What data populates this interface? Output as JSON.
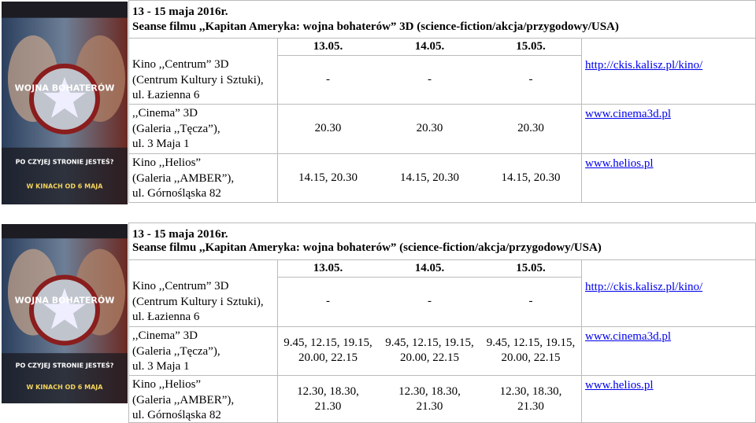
{
  "poster": {
    "title": "WOJNA BOHATERÓW",
    "tagline": "PO CZYJEJ STRONIE JESTEŚ?",
    "release": "W KINACH OD 6 MAJA"
  },
  "blocks": [
    {
      "date_range": "13 - 15 maja 2016r.",
      "title": "Seanse filmu ,,Kapitan Ameryka: wojna bohaterów” 3D (science-fiction/akcja/przygodowy/USA)",
      "dates": [
        "13.05.",
        "14.05.",
        "15.05."
      ],
      "rows": [
        {
          "cinema": [
            "Kino ,,Centrum” 3D",
            "(Centrum Kultury i Sztuki),",
            "ul. Łazienna 6"
          ],
          "times": [
            [
              "-"
            ],
            [
              "-"
            ],
            [
              "-"
            ]
          ],
          "link": "http://ckis.kalisz.pl/kino/"
        },
        {
          "cinema": [
            ",,Cinema” 3D",
            "(Galeria ,,Tęcza”),",
            "ul. 3 Maja 1"
          ],
          "times": [
            [
              "20.30"
            ],
            [
              "20.30"
            ],
            [
              "20.30"
            ]
          ],
          "link": "www.cinema3d.pl"
        },
        {
          "cinema": [
            "Kino ,,Helios”",
            "(Galeria ,,AMBER”),",
            "ul. Górnośląska 82"
          ],
          "times": [
            [
              "14.15, 20.30"
            ],
            [
              "14.15, 20.30"
            ],
            [
              "14.15, 20.30"
            ]
          ],
          "link": "www.helios.pl"
        }
      ]
    },
    {
      "date_range": "13 - 15 maja 2016r.",
      "title": "Seanse filmu ,,Kapitan Ameryka: wojna bohaterów” (science-fiction/akcja/przygodowy/USA)",
      "dates": [
        "13.05.",
        "14.05.",
        "15.05."
      ],
      "rows": [
        {
          "cinema": [
            "Kino ,,Centrum” 3D",
            "(Centrum Kultury i Sztuki),",
            "ul. Łazienna 6"
          ],
          "times": [
            [
              "-"
            ],
            [
              "-"
            ],
            [
              "-"
            ]
          ],
          "link": "http://ckis.kalisz.pl/kino/"
        },
        {
          "cinema": [
            ",,Cinema” 3D",
            "(Galeria ,,Tęcza”),",
            "ul. 3 Maja 1"
          ],
          "times": [
            [
              "9.45, 12.15, 19.15,",
              "20.00, 22.15"
            ],
            [
              "9.45, 12.15, 19.15,",
              "20.00, 22.15"
            ],
            [
              "9.45, 12.15, 19.15,",
              "20.00, 22.15"
            ]
          ],
          "link": "www.cinema3d.pl"
        },
        {
          "cinema": [
            "Kino ,,Helios”",
            "(Galeria ,,AMBER”),",
            "ul. Górnośląska 82"
          ],
          "times": [
            [
              "12.30, 18.30,",
              "21.30"
            ],
            [
              "12.30, 18.30,",
              "21.30"
            ],
            [
              "12.30, 18.30,",
              "21.30"
            ]
          ],
          "link": "www.helios.pl"
        }
      ]
    }
  ]
}
